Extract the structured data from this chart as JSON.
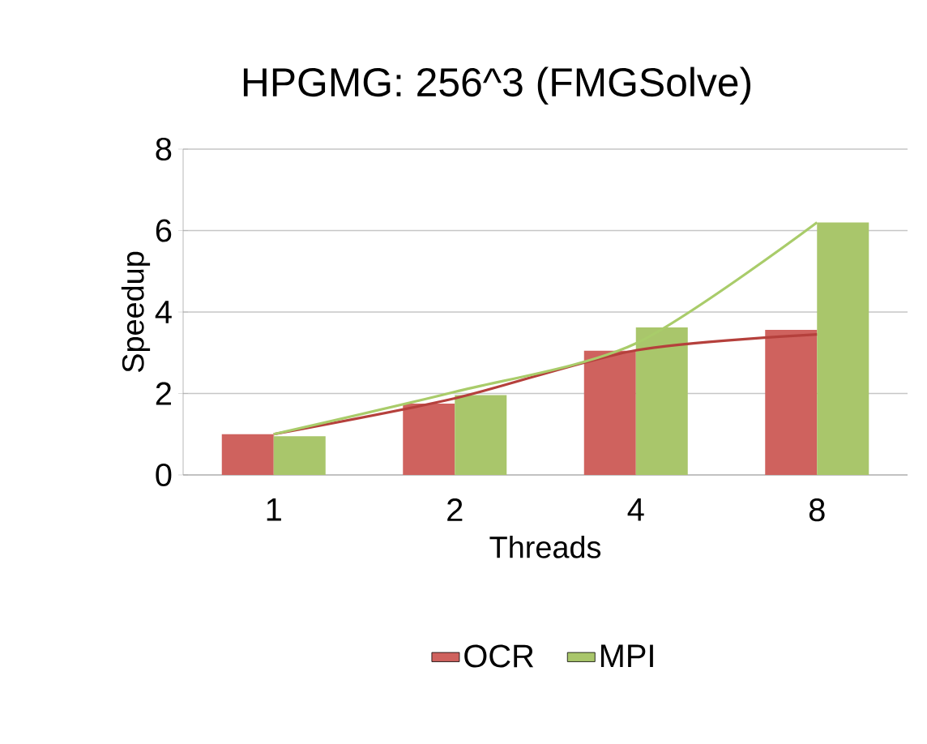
{
  "chart_data": {
    "type": "bar",
    "title": "HPGMG: 256^3 (FMGSolve)",
    "xlabel": "Threads",
    "ylabel": "Speedup",
    "categories": [
      "1",
      "2",
      "4",
      "8"
    ],
    "series": [
      {
        "name": "OCR",
        "color": "#cf625e",
        "values": [
          1.0,
          1.75,
          3.05,
          3.56
        ]
      },
      {
        "name": "MPI",
        "color": "#a9c66b",
        "values": [
          0.95,
          1.96,
          3.62,
          6.2
        ]
      },
      {
        "type": "line",
        "color": "#b5403c",
        "x": [
          "1",
          "2",
          "4",
          "8"
        ],
        "values": [
          1.0,
          1.88,
          3.06,
          3.45
        ]
      },
      {
        "type": "line",
        "color": "#a9cc6a",
        "x": [
          "1",
          "2",
          "4",
          "8"
        ],
        "values": [
          1.0,
          2.04,
          3.23,
          6.2
        ]
      }
    ],
    "ylim": [
      0,
      8
    ],
    "yticks": [
      0,
      2,
      4,
      6,
      8
    ],
    "grid": "y",
    "legend": "bottom"
  }
}
